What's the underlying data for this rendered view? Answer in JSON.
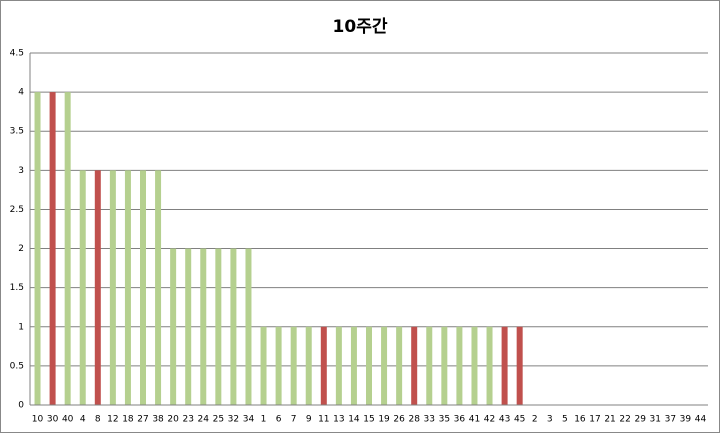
{
  "chart_data": {
    "type": "bar",
    "title": "10주간",
    "categories": [
      "10",
      "30",
      "40",
      "4",
      "8",
      "12",
      "18",
      "27",
      "38",
      "20",
      "23",
      "24",
      "25",
      "32",
      "34",
      "1",
      "6",
      "7",
      "9",
      "11",
      "13",
      "14",
      "15",
      "19",
      "26",
      "28",
      "33",
      "35",
      "36",
      "41",
      "42",
      "43",
      "45",
      "2",
      "3",
      "5",
      "16",
      "17",
      "21",
      "22",
      "29",
      "31",
      "37",
      "39",
      "44"
    ],
    "values": [
      4,
      4,
      4,
      3,
      3,
      3,
      3,
      3,
      3,
      2,
      2,
      2,
      2,
      2,
      2,
      1,
      1,
      1,
      1,
      1,
      1,
      1,
      1,
      1,
      1,
      1,
      1,
      1,
      1,
      1,
      1,
      1,
      1,
      0,
      0,
      0,
      0,
      0,
      0,
      0,
      0,
      0,
      0,
      0,
      0
    ],
    "colors": [
      "#b5d08f",
      "#c0504d",
      "#b5d08f",
      "#b5d08f",
      "#c0504d",
      "#b5d08f",
      "#b5d08f",
      "#b5d08f",
      "#b5d08f",
      "#b5d08f",
      "#b5d08f",
      "#b5d08f",
      "#b5d08f",
      "#b5d08f",
      "#b5d08f",
      "#b5d08f",
      "#b5d08f",
      "#b5d08f",
      "#b5d08f",
      "#c0504d",
      "#b5d08f",
      "#b5d08f",
      "#b5d08f",
      "#b5d08f",
      "#b5d08f",
      "#c0504d",
      "#b5d08f",
      "#b5d08f",
      "#b5d08f",
      "#b5d08f",
      "#b5d08f",
      "#c0504d",
      "#c0504d",
      "#b5d08f",
      "#b5d08f",
      "#b5d08f",
      "#b5d08f",
      "#b5d08f",
      "#b5d08f",
      "#b5d08f",
      "#b5d08f",
      "#b5d08f",
      "#b5d08f",
      "#b5d08f",
      "#b5d08f"
    ],
    "ylim": [
      0,
      4.5
    ],
    "yticks": [
      0,
      0.5,
      1,
      1.5,
      2,
      2.5,
      3,
      3.5,
      4,
      4.5
    ],
    "grid": true
  }
}
